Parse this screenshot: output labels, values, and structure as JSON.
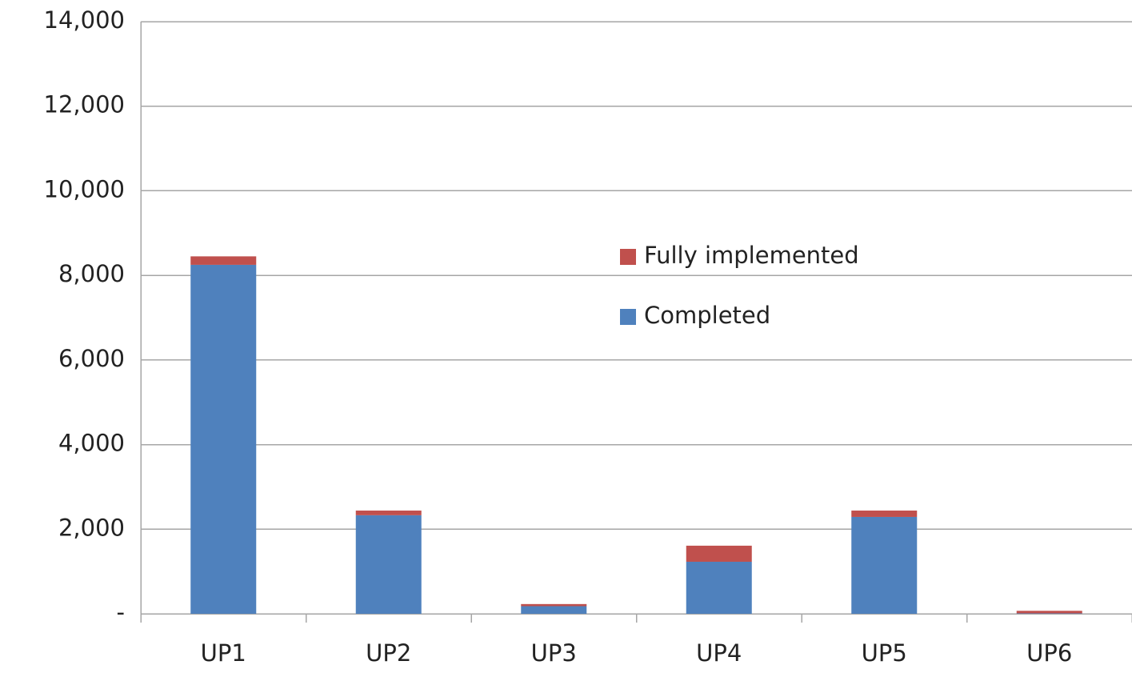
{
  "chart_data": {
    "type": "stacked_bar",
    "categories": [
      "UP1",
      "UP2",
      "UP3",
      "UP4",
      "UP5",
      "UP6"
    ],
    "series": [
      {
        "name": "Completed",
        "color": "#4f81bd",
        "values": [
          8250,
          2330,
          180,
          1230,
          2290,
          10
        ]
      },
      {
        "name": "Fully implemented",
        "color": "#c0504d",
        "values": [
          200,
          110,
          50,
          380,
          150,
          60
        ]
      }
    ],
    "ylim": [
      0,
      14000
    ],
    "yticks": [
      {
        "value": 0,
        "label": "-"
      },
      {
        "value": 2000,
        "label": "2,000"
      },
      {
        "value": 4000,
        "label": "4,000"
      },
      {
        "value": 6000,
        "label": "6,000"
      },
      {
        "value": 8000,
        "label": "8,000"
      },
      {
        "value": 10000,
        "label": "10,000"
      },
      {
        "value": 12000,
        "label": "12,000"
      },
      {
        "value": 14000,
        "label": "14,000"
      }
    ],
    "grid": true,
    "legend": "center"
  }
}
